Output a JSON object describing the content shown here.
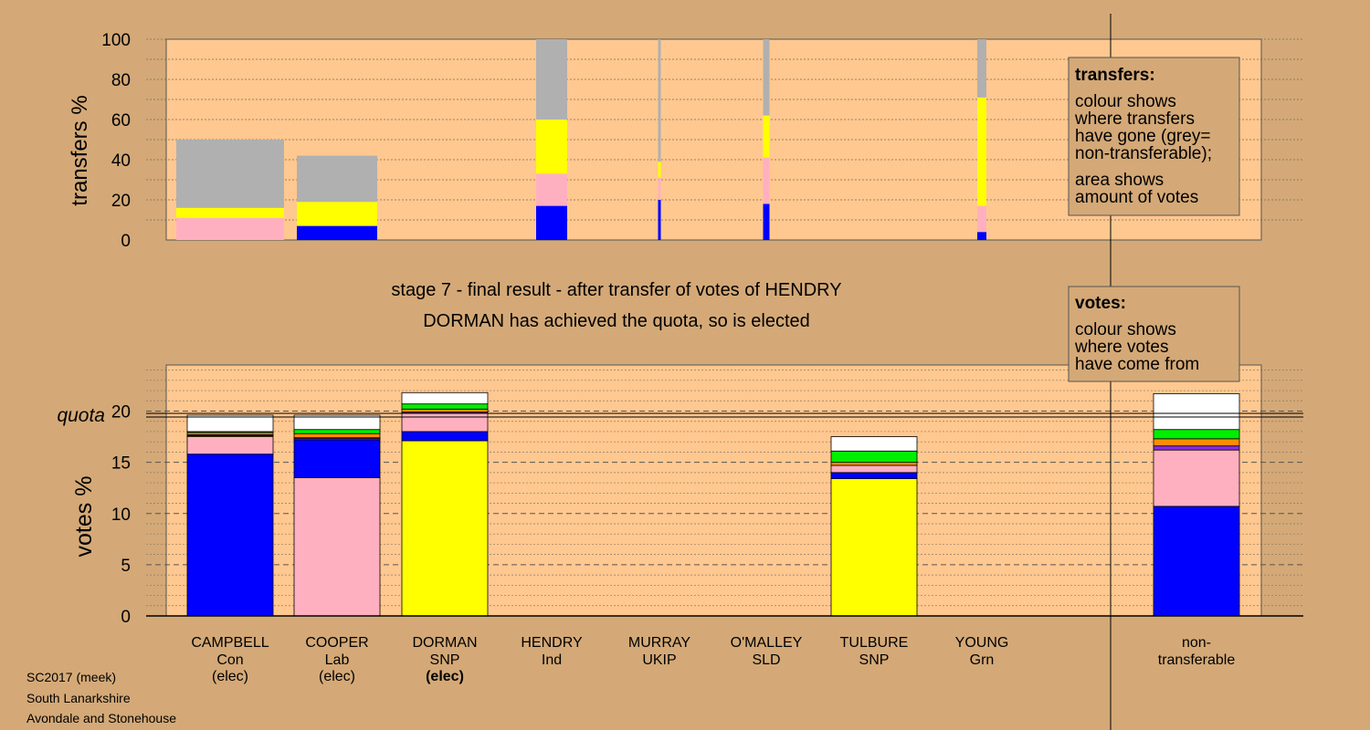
{
  "stage_title": "stage 7 - final result - after transfer of votes of HENDRY",
  "stage_subtitle": "DORMAN has achieved the quota, so is elected",
  "footer": [
    "SC2017 (meek)",
    "South Lanarkshire",
    "Avondale and Stonehouse"
  ],
  "colors": {
    "Con": "#0000ff",
    "Lab": "#ffb0c0",
    "SNP": "#ffff00",
    "Grn": "#00ee00",
    "UKIP": "#8b2be2",
    "SLD": "#ff8c00",
    "Ind": "#ffffff",
    "nontransferable": "#b0b0b0",
    "panel": "#ffc890",
    "background": "#d4a977"
  },
  "legend_transfers": {
    "heading": "transfers:",
    "lines_a": [
      "colour shows",
      "where transfers",
      "have gone (grey=",
      "non-transferable);"
    ],
    "lines_b": [
      "area shows",
      "amount of votes"
    ]
  },
  "legend_votes": {
    "heading": "votes:",
    "lines": [
      "colour shows",
      "where votes",
      "have come from"
    ]
  },
  "candidates": [
    {
      "name": "CAMPBELL",
      "party": "Con",
      "status": "(elec)",
      "status_bold": false
    },
    {
      "name": "COOPER",
      "party": "Lab",
      "status": "(elec)",
      "status_bold": false
    },
    {
      "name": "DORMAN",
      "party": "SNP",
      "status": "(elec)",
      "status_bold": true
    },
    {
      "name": "HENDRY",
      "party": "Ind",
      "status": "",
      "status_bold": false
    },
    {
      "name": "MURRAY",
      "party": "UKIP",
      "status": "",
      "status_bold": false
    },
    {
      "name": "O'MALLEY",
      "party": "SLD",
      "status": "",
      "status_bold": false
    },
    {
      "name": "TULBURE",
      "party": "SNP",
      "status": "",
      "status_bold": false
    },
    {
      "name": "YOUNG",
      "party": "Grn",
      "status": "",
      "status_bold": false
    }
  ],
  "nontransferable_label": [
    "non-",
    "transferable"
  ],
  "chart_data": [
    {
      "type": "bar",
      "stacked": true,
      "ylabel": "transfers %",
      "ylim": [
        0,
        100
      ],
      "yticks": [
        0,
        20,
        40,
        60,
        80,
        100
      ],
      "bars": [
        {
          "candidate": "CAMPBELL",
          "segments": [
            {
              "party": "Lab",
              "value": 11
            },
            {
              "party": "SNP",
              "value": 5
            },
            {
              "party": "nontransferable",
              "value": 34
            }
          ]
        },
        {
          "candidate": "COOPER",
          "segments": [
            {
              "party": "Con",
              "value": 7
            },
            {
              "party": "SNP",
              "value": 12
            },
            {
              "party": "nontransferable",
              "value": 23
            }
          ]
        },
        {
          "candidate": "HENDRY",
          "segments": [
            {
              "party": "Con",
              "value": 17
            },
            {
              "party": "Lab",
              "value": 16
            },
            {
              "party": "SNP",
              "value": 27
            },
            {
              "party": "nontransferable",
              "value": 40
            }
          ]
        },
        {
          "candidate": "MURRAY",
          "segments": [
            {
              "party": "Con",
              "value": 20
            },
            {
              "party": "Lab",
              "value": 11
            },
            {
              "party": "SNP",
              "value": 8
            },
            {
              "party": "nontransferable",
              "value": 61
            }
          ]
        },
        {
          "candidate": "O'MALLEY",
          "segments": [
            {
              "party": "Con",
              "value": 18
            },
            {
              "party": "Lab",
              "value": 23
            },
            {
              "party": "SNP",
              "value": 21
            },
            {
              "party": "nontransferable",
              "value": 38
            }
          ]
        },
        {
          "candidate": "YOUNG",
          "segments": [
            {
              "party": "Con",
              "value": 4
            },
            {
              "party": "Lab",
              "value": 13
            },
            {
              "party": "SNP",
              "value": 54
            },
            {
              "party": "nontransferable",
              "value": 29
            }
          ]
        }
      ]
    },
    {
      "type": "bar",
      "stacked": true,
      "ylabel": "votes %",
      "ylim": [
        0,
        24.5
      ],
      "yticks": [
        0,
        5,
        10,
        15,
        20
      ],
      "quota_label": "quota",
      "quota": 19.6,
      "bars": [
        {
          "candidate": "CAMPBELL",
          "segments": [
            {
              "party": "Con",
              "value": 15.8
            },
            {
              "party": "Lab",
              "value": 1.7
            },
            {
              "party": "SNP",
              "value": 0.1
            },
            {
              "party": "UKIP",
              "value": 0.1
            },
            {
              "party": "SLD",
              "value": 0.2
            },
            {
              "party": "Grn",
              "value": 0.1
            },
            {
              "party": "Ind",
              "value": 1.6
            }
          ]
        },
        {
          "candidate": "COOPER",
          "segments": [
            {
              "party": "Lab",
              "value": 13.5
            },
            {
              "party": "Con",
              "value": 3.7
            },
            {
              "party": "SNP",
              "value": 0.1
            },
            {
              "party": "UKIP",
              "value": 0.1
            },
            {
              "party": "SLD",
              "value": 0.4
            },
            {
              "party": "Grn",
              "value": 0.4
            },
            {
              "party": "Ind",
              "value": 1.4
            }
          ]
        },
        {
          "candidate": "DORMAN",
          "segments": [
            {
              "party": "SNP",
              "value": 17.1
            },
            {
              "party": "Con",
              "value": 0.9
            },
            {
              "party": "Lab",
              "value": 1.8
            },
            {
              "party": "UKIP",
              "value": 0.1
            },
            {
              "party": "SLD",
              "value": 0.3
            },
            {
              "party": "Grn",
              "value": 0.5
            },
            {
              "party": "Ind",
              "value": 1.1
            }
          ]
        },
        {
          "candidate": "TULBURE",
          "segments": [
            {
              "party": "SNP",
              "value": 13.4
            },
            {
              "party": "Con",
              "value": 0.6
            },
            {
              "party": "Lab",
              "value": 0.7
            },
            {
              "party": "SLD",
              "value": 0.3
            },
            {
              "party": "Grn",
              "value": 1.1
            },
            {
              "party": "Ind",
              "value": 1.4
            }
          ]
        },
        {
          "candidate": "non-transferable",
          "segments": [
            {
              "party": "Con",
              "value": 10.7
            },
            {
              "party": "Lab",
              "value": 5.5
            },
            {
              "party": "UKIP",
              "value": 0.4
            },
            {
              "party": "SLD",
              "value": 0.7
            },
            {
              "party": "Grn",
              "value": 0.9
            },
            {
              "party": "Ind",
              "value": 3.5
            }
          ]
        }
      ]
    }
  ]
}
